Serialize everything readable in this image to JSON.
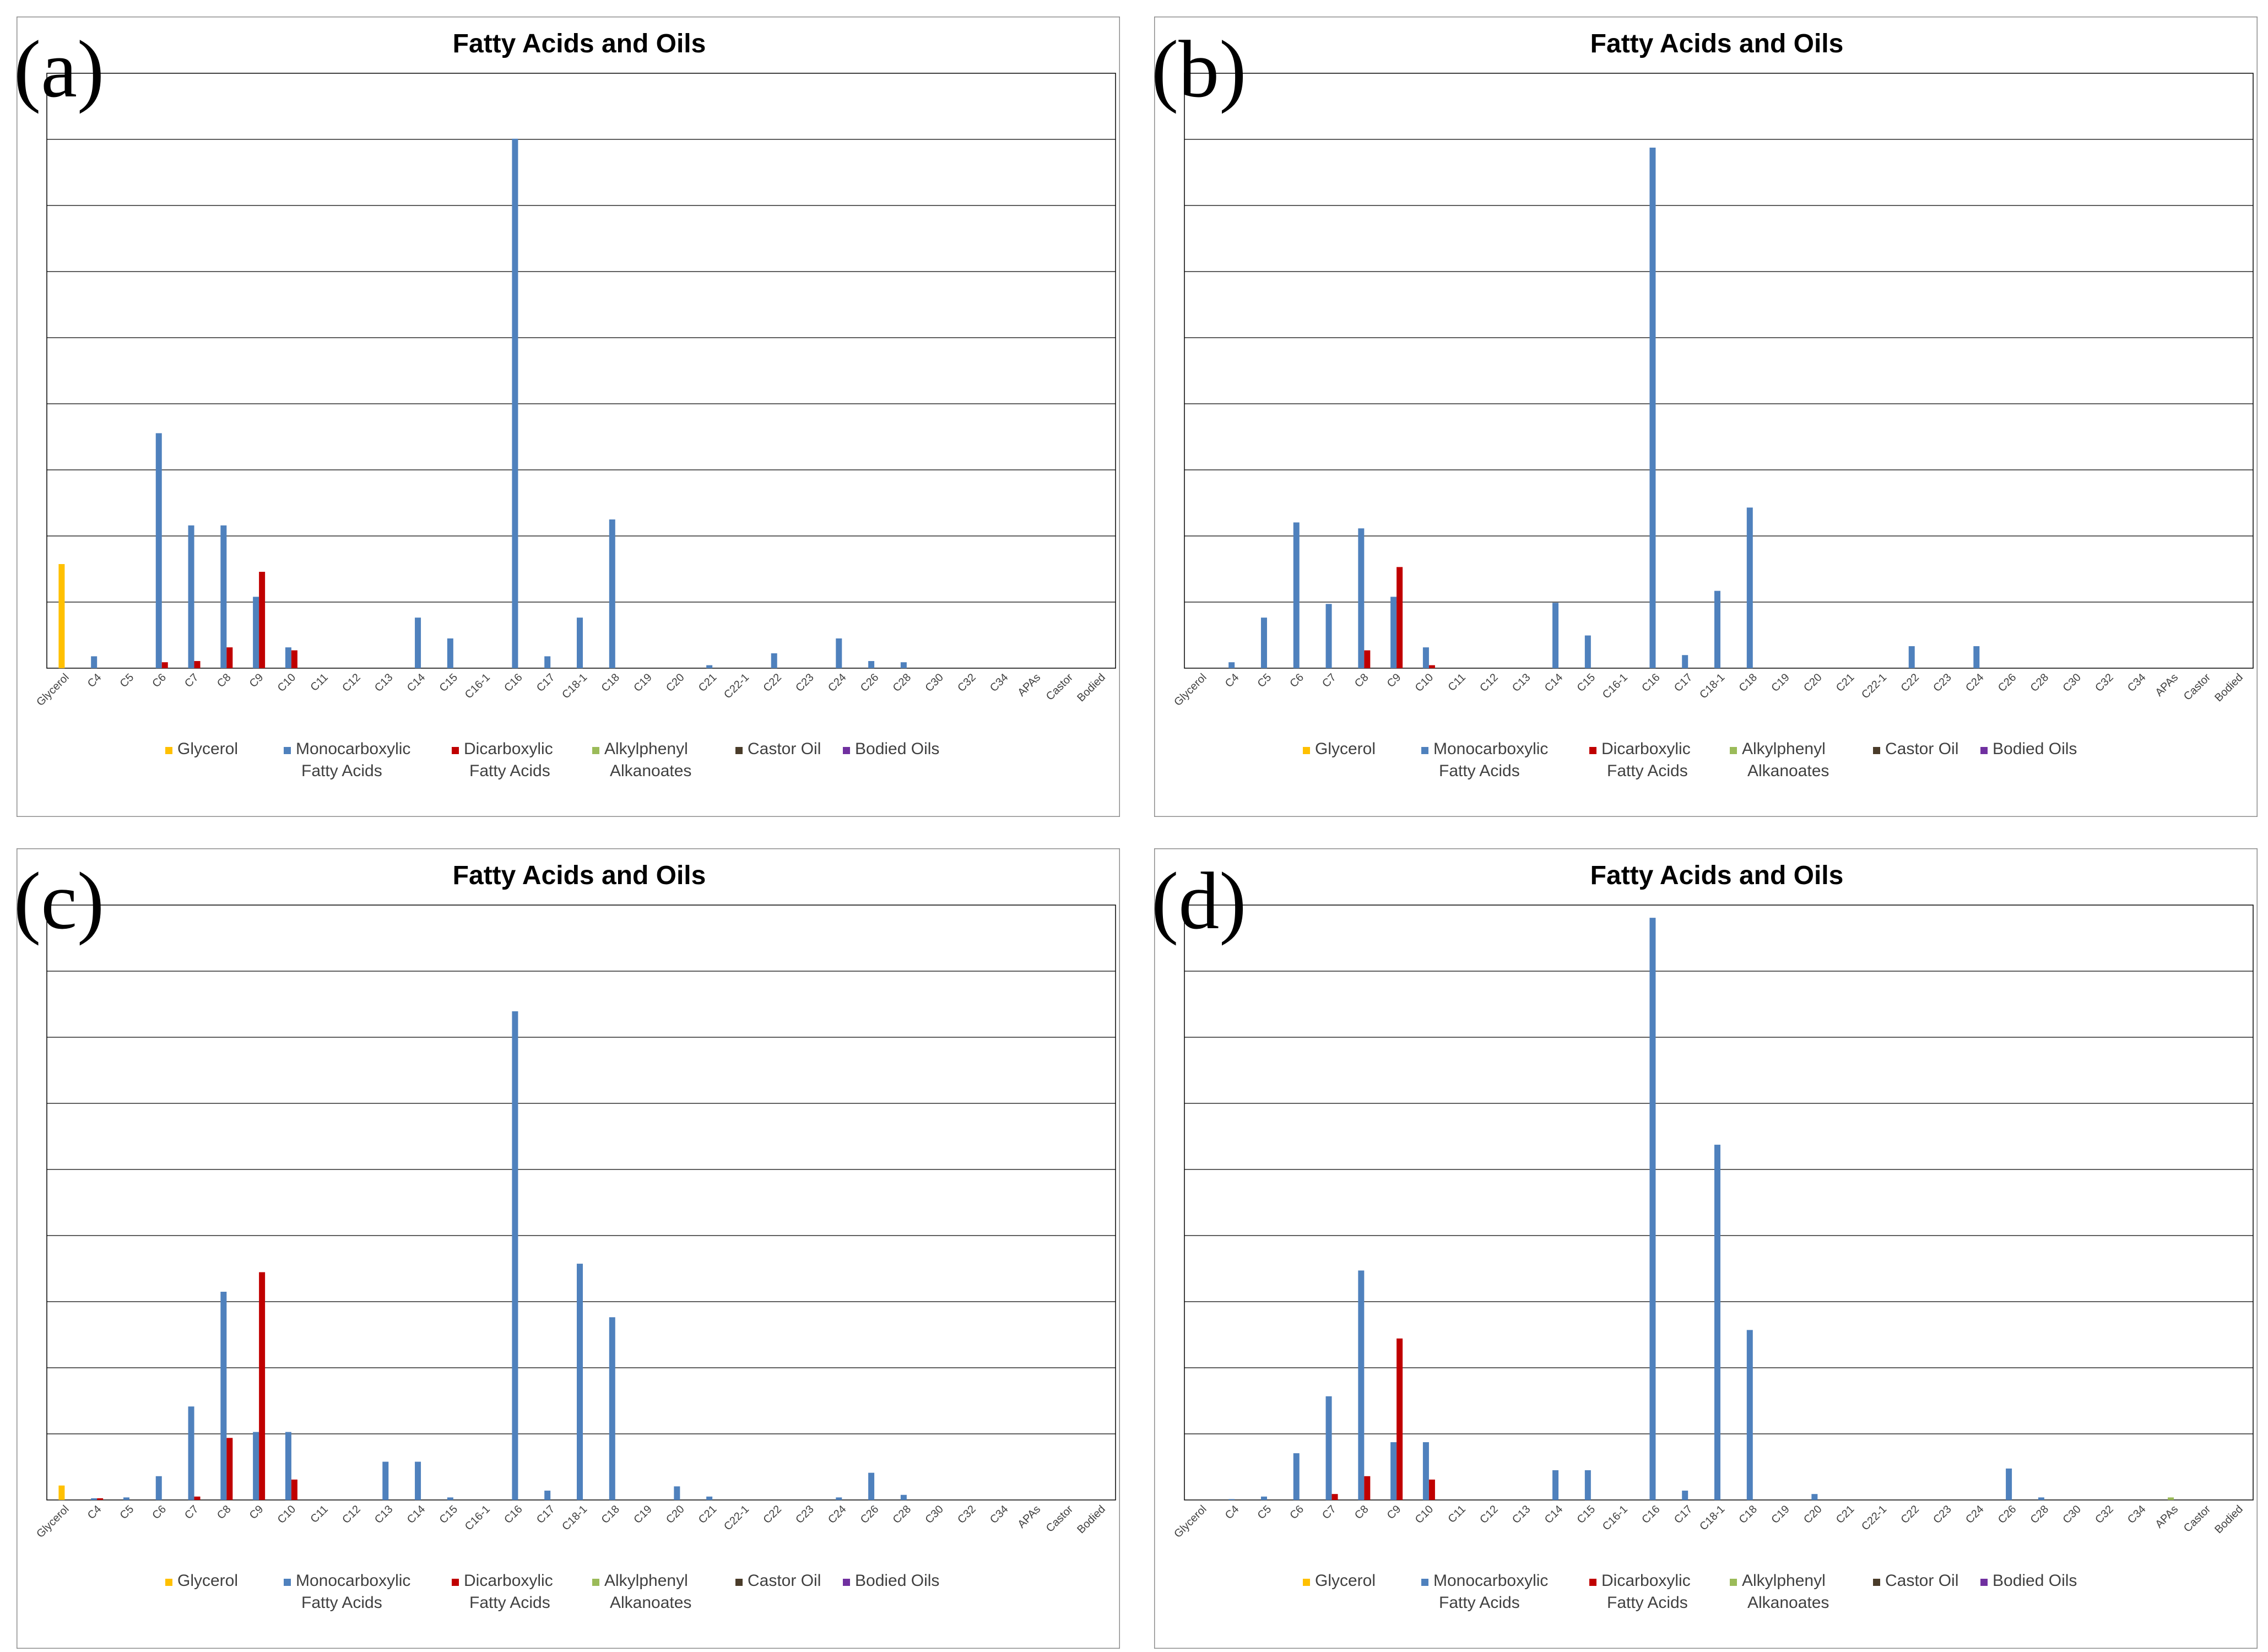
{
  "figure": {
    "panel_labels": [
      "(a)",
      "(b)",
      "(c)",
      "(d)"
    ]
  },
  "chart_data": [
    {
      "panel": "(a)",
      "type": "bar",
      "title": "Fatty Acids and Oils",
      "xlabel": "",
      "ylabel": "",
      "ylim": [
        0,
        100
      ],
      "grid": true,
      "legend_position": "bottom",
      "categories": [
        "Glycerol",
        "C4",
        "C5",
        "C6",
        "C7",
        "C8",
        "C9",
        "C10",
        "C11",
        "C12",
        "C13",
        "C14",
        "C15",
        "C16-1",
        "C16",
        "C17",
        "C18-1",
        "C18",
        "C19",
        "C20",
        "C21",
        "C22-1",
        "C22",
        "C23",
        "C24",
        "C26",
        "C28",
        "C30",
        "C32",
        "C34",
        "APAs",
        "Castor",
        "Bodied"
      ],
      "series": [
        {
          "name": "Glycerol",
          "color": "#ffc000",
          "values": [
            17.5,
            0,
            0,
            0,
            0,
            0,
            0,
            0,
            0,
            0,
            0,
            0,
            0,
            0,
            0,
            0,
            0,
            0,
            0,
            0,
            0,
            0,
            0,
            0,
            0,
            0,
            0,
            0,
            0,
            0,
            0,
            0,
            0
          ]
        },
        {
          "name": "Monocarboxylic Fatty Acids",
          "color": "#4f81bd",
          "values": [
            0,
            2,
            0,
            39.5,
            24,
            24,
            12,
            3.5,
            0,
            0,
            0,
            8.5,
            5,
            0,
            89,
            2,
            8.5,
            25,
            0,
            0,
            0.5,
            0,
            2.5,
            0,
            5,
            1.2,
            1,
            0,
            0,
            0,
            0,
            0,
            0
          ]
        },
        {
          "name": "Dicarboxylic Fatty Acids",
          "color": "#c00000",
          "values": [
            0,
            0,
            0,
            1,
            1.2,
            3.5,
            16.2,
            3,
            0,
            0,
            0,
            0,
            0,
            0,
            0,
            0,
            0,
            0,
            0,
            0,
            0,
            0,
            0,
            0,
            0,
            0,
            0,
            0,
            0,
            0,
            0,
            0,
            0
          ]
        },
        {
          "name": "Alkylphenyl Alkanoates",
          "color": "#9bbb59",
          "values": [
            0,
            0,
            0,
            0,
            0,
            0,
            0,
            0,
            0,
            0,
            0,
            0,
            0,
            0,
            0,
            0,
            0,
            0,
            0,
            0,
            0,
            0,
            0,
            0,
            0,
            0,
            0,
            0,
            0,
            0,
            0,
            0,
            0
          ]
        },
        {
          "name": "Castor Oil",
          "color": "#4a3c2a",
          "values": [
            0,
            0,
            0,
            0,
            0,
            0,
            0,
            0,
            0,
            0,
            0,
            0,
            0,
            0,
            0,
            0,
            0,
            0,
            0,
            0,
            0,
            0,
            0,
            0,
            0,
            0,
            0,
            0,
            0,
            0,
            0,
            0,
            0
          ]
        },
        {
          "name": "Bodied Oils",
          "color": "#7030a0",
          "values": [
            0,
            0,
            0,
            0,
            0,
            0,
            0,
            0,
            0,
            0,
            0,
            0,
            0,
            0,
            0,
            0,
            0,
            0,
            0,
            0,
            0,
            0,
            0,
            0,
            0,
            0,
            0,
            0,
            0,
            0,
            0,
            0,
            0
          ]
        }
      ]
    },
    {
      "panel": "(b)",
      "type": "bar",
      "title": "Fatty Acids and Oils",
      "xlabel": "",
      "ylabel": "",
      "ylim": [
        0,
        100
      ],
      "grid": true,
      "legend_position": "bottom",
      "categories": [
        "Glycerol",
        "C4",
        "C5",
        "C6",
        "C7",
        "C8",
        "C9",
        "C10",
        "C11",
        "C12",
        "C13",
        "C14",
        "C15",
        "C16-1",
        "C16",
        "C17",
        "C18-1",
        "C18",
        "C19",
        "C20",
        "C21",
        "C22-1",
        "C22",
        "C23",
        "C24",
        "C26",
        "C28",
        "C30",
        "C32",
        "C34",
        "APAs",
        "Castor",
        "Bodied"
      ],
      "series": [
        {
          "name": "Glycerol",
          "color": "#ffc000",
          "values": [
            0,
            0,
            0,
            0,
            0,
            0,
            0,
            0,
            0,
            0,
            0,
            0,
            0,
            0,
            0,
            0,
            0,
            0,
            0,
            0,
            0,
            0,
            0,
            0,
            0,
            0,
            0,
            0,
            0,
            0,
            0,
            0,
            0
          ]
        },
        {
          "name": "Monocarboxylic Fatty Acids",
          "color": "#4f81bd",
          "values": [
            0,
            1,
            8.5,
            24.5,
            10.8,
            23.5,
            12,
            3.5,
            0,
            0,
            0,
            11,
            5.5,
            0,
            87.5,
            2.2,
            13,
            27,
            0,
            0,
            0,
            0,
            3.7,
            0,
            3.7,
            0,
            0,
            0,
            0,
            0,
            0,
            0,
            0
          ]
        },
        {
          "name": "Dicarboxylic Fatty Acids",
          "color": "#c00000",
          "values": [
            0,
            0,
            0,
            0,
            0,
            3,
            17,
            0.5,
            0,
            0,
            0,
            0,
            0,
            0,
            0,
            0,
            0,
            0,
            0,
            0,
            0,
            0,
            0,
            0,
            0,
            0,
            0,
            0,
            0,
            0,
            0,
            0,
            0
          ]
        },
        {
          "name": "Alkylphenyl Alkanoates",
          "color": "#9bbb59",
          "values": [
            0,
            0,
            0,
            0,
            0,
            0,
            0,
            0,
            0,
            0,
            0,
            0,
            0,
            0,
            0,
            0,
            0,
            0,
            0,
            0,
            0,
            0,
            0,
            0,
            0,
            0,
            0,
            0,
            0,
            0,
            0,
            0,
            0
          ]
        },
        {
          "name": "Castor Oil",
          "color": "#4a3c2a",
          "values": [
            0,
            0,
            0,
            0,
            0,
            0,
            0,
            0,
            0,
            0,
            0,
            0,
            0,
            0,
            0,
            0,
            0,
            0,
            0,
            0,
            0,
            0,
            0,
            0,
            0,
            0,
            0,
            0,
            0,
            0,
            0,
            0,
            0
          ]
        },
        {
          "name": "Bodied Oils",
          "color": "#7030a0",
          "values": [
            0,
            0,
            0,
            0,
            0,
            0,
            0,
            0,
            0,
            0,
            0,
            0,
            0,
            0,
            0,
            0,
            0,
            0,
            0,
            0,
            0,
            0,
            0,
            0,
            0,
            0,
            0,
            0,
            0,
            0,
            0,
            0,
            0
          ]
        }
      ]
    },
    {
      "panel": "(c)",
      "type": "bar",
      "title": "Fatty Acids and Oils",
      "xlabel": "",
      "ylabel": "",
      "ylim": [
        0,
        70
      ],
      "grid": true,
      "legend_position": "bottom",
      "categories": [
        "Glycerol",
        "C4",
        "C5",
        "C6",
        "C7",
        "C8",
        "C9",
        "C10",
        "C11",
        "C12",
        "C13",
        "C14",
        "C15",
        "C16-1",
        "C16",
        "C17",
        "C18-1",
        "C18",
        "C19",
        "C20",
        "C21",
        "C22-1",
        "C22",
        "C23",
        "C24",
        "C26",
        "C28",
        "C30",
        "C32",
        "C34",
        "APAs",
        "Castor",
        "Bodied"
      ],
      "series": [
        {
          "name": "Glycerol",
          "color": "#ffc000",
          "values": [
            1.7,
            0,
            0,
            0,
            0,
            0,
            0,
            0,
            0,
            0,
            0,
            0,
            0,
            0,
            0,
            0,
            0,
            0,
            0,
            0,
            0,
            0,
            0,
            0,
            0,
            0,
            0,
            0,
            0,
            0,
            0,
            0,
            0
          ]
        },
        {
          "name": "Monocarboxylic Fatty Acids",
          "color": "#4f81bd",
          "values": [
            0,
            0.2,
            0.3,
            2.8,
            11,
            24.5,
            8,
            8,
            0,
            0,
            4.5,
            4.5,
            0.3,
            0,
            57.5,
            1.1,
            27.8,
            21.5,
            0,
            1.6,
            0.4,
            0,
            0,
            0,
            0.3,
            3.2,
            0.6,
            0,
            0,
            0,
            0,
            0,
            0
          ]
        },
        {
          "name": "Dicarboxylic Fatty Acids",
          "color": "#c00000",
          "values": [
            0,
            0.2,
            0,
            0,
            0.4,
            7.3,
            26.8,
            2.4,
            0,
            0,
            0,
            0,
            0,
            0,
            0,
            0,
            0,
            0,
            0,
            0,
            0,
            0,
            0,
            0,
            0,
            0,
            0,
            0,
            0,
            0,
            0,
            0,
            0
          ]
        },
        {
          "name": "Alkylphenyl Alkanoates",
          "color": "#9bbb59",
          "values": [
            0,
            0,
            0,
            0,
            0,
            0,
            0,
            0,
            0,
            0,
            0,
            0,
            0,
            0,
            0,
            0,
            0,
            0,
            0,
            0,
            0,
            0,
            0,
            0,
            0,
            0,
            0,
            0,
            0,
            0,
            0,
            0,
            0
          ]
        },
        {
          "name": "Castor Oil",
          "color": "#4a3c2a",
          "values": [
            0,
            0,
            0,
            0,
            0,
            0,
            0,
            0,
            0,
            0,
            0,
            0,
            0,
            0,
            0,
            0,
            0,
            0,
            0,
            0,
            0,
            0,
            0,
            0,
            0,
            0,
            0,
            0,
            0,
            0,
            0,
            0,
            0
          ]
        },
        {
          "name": "Bodied Oils",
          "color": "#7030a0",
          "values": [
            0,
            0,
            0,
            0,
            0,
            0,
            0,
            0,
            0,
            0,
            0,
            0,
            0,
            0,
            0,
            0,
            0,
            0,
            0,
            0,
            0,
            0,
            0,
            0,
            0,
            0,
            0,
            0,
            0,
            0,
            0,
            0,
            0
          ]
        }
      ]
    },
    {
      "panel": "(d)",
      "type": "bar",
      "title": "Fatty Acids and Oils",
      "xlabel": "",
      "ylabel": "",
      "ylim": [
        0,
        70
      ],
      "grid": true,
      "legend_position": "bottom",
      "categories": [
        "Glycerol",
        "C4",
        "C5",
        "C6",
        "C7",
        "C8",
        "C9",
        "C10",
        "C11",
        "C12",
        "C13",
        "C14",
        "C15",
        "C16-1",
        "C16",
        "C17",
        "C18-1",
        "C18",
        "C19",
        "C20",
        "C21",
        "C22-1",
        "C22",
        "C23",
        "C24",
        "C26",
        "C28",
        "C30",
        "C32",
        "C34",
        "APAs",
        "Castor",
        "Bodied"
      ],
      "series": [
        {
          "name": "Glycerol",
          "color": "#ffc000",
          "values": [
            0,
            0,
            0,
            0,
            0,
            0,
            0,
            0,
            0,
            0,
            0,
            0,
            0,
            0,
            0,
            0,
            0,
            0,
            0,
            0,
            0,
            0,
            0,
            0,
            0,
            0,
            0,
            0,
            0,
            0,
            0,
            0,
            0
          ]
        },
        {
          "name": "Monocarboxylic Fatty Acids",
          "color": "#4f81bd",
          "values": [
            0,
            0.1,
            0.4,
            5.5,
            12.2,
            27,
            6.8,
            6.8,
            0,
            0,
            0,
            3.5,
            3.5,
            0,
            68.5,
            1.1,
            41.8,
            20,
            0,
            0.7,
            0,
            0,
            0,
            0,
            0,
            3.7,
            0.3,
            0,
            0,
            0,
            0,
            0,
            0
          ]
        },
        {
          "name": "Dicarboxylic Fatty Acids",
          "color": "#c00000",
          "values": [
            0,
            0,
            0,
            0,
            0.7,
            2.8,
            19,
            2.4,
            0,
            0,
            0,
            0,
            0,
            0,
            0,
            0,
            0,
            0,
            0,
            0,
            0,
            0,
            0,
            0,
            0,
            0,
            0,
            0,
            0,
            0,
            0,
            0,
            0
          ]
        },
        {
          "name": "Alkylphenyl Alkanoates",
          "color": "#9bbb59",
          "values": [
            0,
            0,
            0,
            0,
            0,
            0,
            0,
            0,
            0,
            0,
            0,
            0,
            0,
            0,
            0,
            0,
            0,
            0,
            0,
            0,
            0,
            0,
            0,
            0,
            0,
            0,
            0,
            0,
            0,
            0,
            0.3,
            0,
            0
          ]
        },
        {
          "name": "Castor Oil",
          "color": "#4a3c2a",
          "values": [
            0,
            0,
            0,
            0,
            0,
            0,
            0,
            0,
            0,
            0,
            0,
            0,
            0,
            0,
            0,
            0,
            0,
            0,
            0,
            0,
            0,
            0,
            0,
            0,
            0,
            0,
            0,
            0,
            0,
            0,
            0,
            0,
            0
          ]
        },
        {
          "name": "Bodied Oils",
          "color": "#7030a0",
          "values": [
            0,
            0,
            0,
            0,
            0,
            0,
            0,
            0,
            0,
            0,
            0,
            0,
            0,
            0,
            0,
            0,
            0,
            0,
            0,
            0,
            0,
            0,
            0,
            0,
            0,
            0,
            0,
            0,
            0,
            0,
            0,
            0,
            0
          ]
        }
      ]
    }
  ]
}
